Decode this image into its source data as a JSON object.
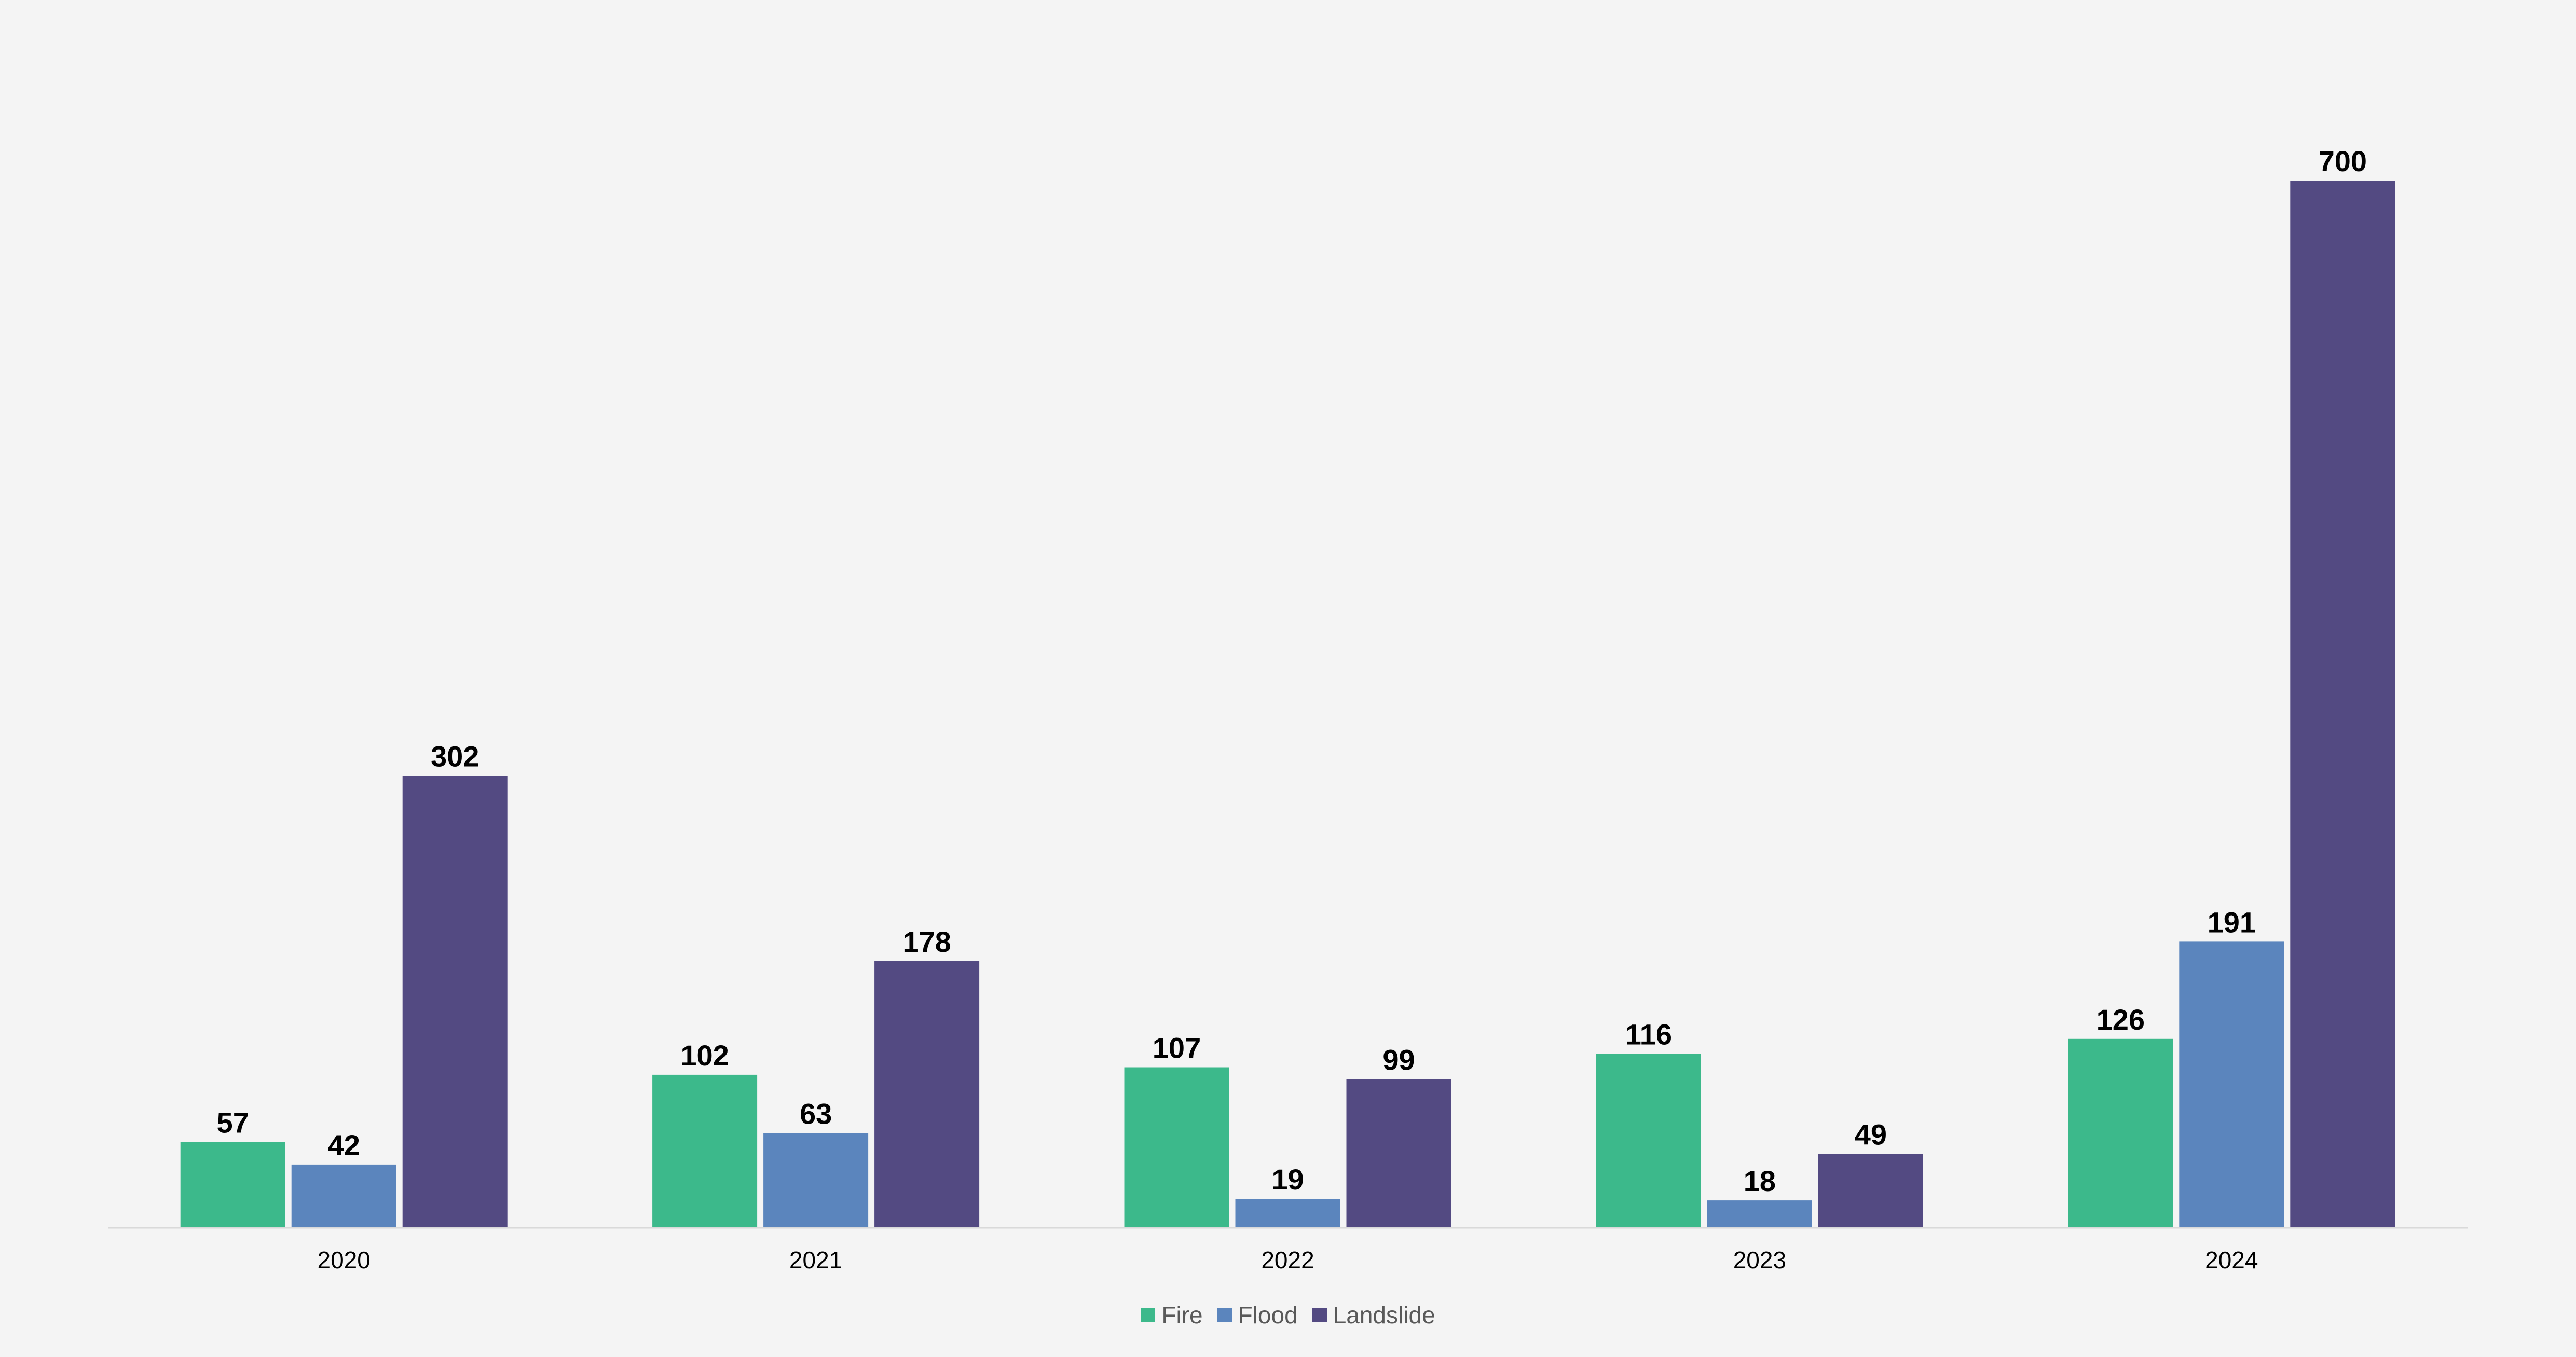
{
  "chart_data": {
    "type": "bar",
    "title": "",
    "xlabel": "",
    "ylabel": "",
    "categories": [
      "2020",
      "2021",
      "2022",
      "2023",
      "2024"
    ],
    "series": [
      {
        "name": "Fire",
        "color": "#3cb98b",
        "values": [
          57,
          102,
          107,
          116,
          126
        ]
      },
      {
        "name": "Flood",
        "color": "#5b85bd",
        "values": [
          42,
          63,
          19,
          18,
          191
        ]
      },
      {
        "name": "Landslide",
        "color": "#534a82",
        "values": [
          302,
          178,
          99,
          49,
          700
        ]
      }
    ],
    "ylim": [
      0,
      700
    ],
    "grid": false,
    "y_axis_visible": false,
    "data_labels": true,
    "legend_position": "bottom"
  },
  "colors": {
    "background": "#f4f4f4",
    "axis_line": "#d9d9d9",
    "legend_text": "#595959"
  }
}
